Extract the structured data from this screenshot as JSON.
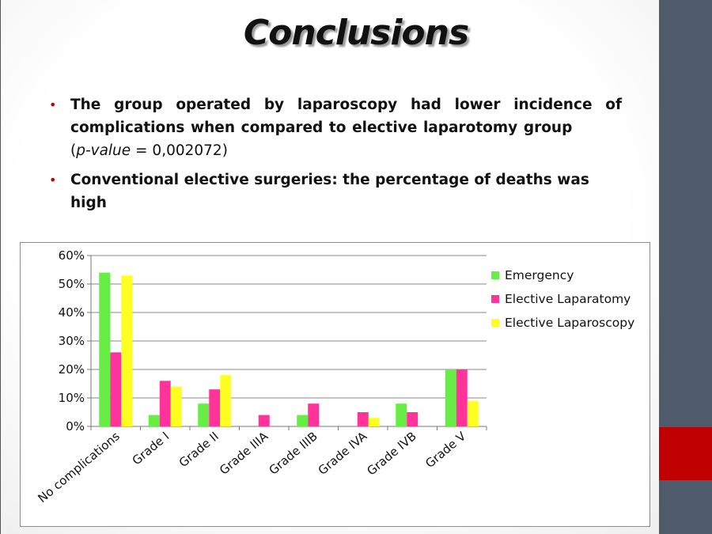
{
  "slide": {
    "title": "Conclusions",
    "bullets": [
      {
        "bold_text": " The group operated by laparoscopy had lower incidence of complications when compared to elective laparotomy group ",
        "paren_open": "(",
        "italic_text": "p-value",
        "value_text": " = 0,002072)"
      },
      {
        "bold_text": " Conventional elective surgeries: the percentage of deaths was high"
      }
    ]
  },
  "colors": {
    "accent_bar": "#4f5a6a",
    "accent_red": "#c00000"
  },
  "chart_data": {
    "type": "bar",
    "categories": [
      "No complications",
      "Grade I",
      "Grade II",
      "Grade IIIA",
      "Grade IIIB",
      "Grade IVA",
      "Grade IVB",
      "Grade V"
    ],
    "series": [
      {
        "name": "Emergency",
        "color": "#66ee44",
        "values": [
          54,
          4,
          8,
          0,
          4,
          0,
          8,
          20
        ]
      },
      {
        "name": "Elective Laparatomy",
        "color": "#ff3399",
        "values": [
          26,
          16,
          13,
          4,
          8,
          5,
          5,
          20
        ]
      },
      {
        "name": "Elective Laparoscopy",
        "color": "#ffff22",
        "values": [
          53,
          14,
          18,
          0,
          0,
          3,
          0,
          9
        ]
      }
    ],
    "yticks": [
      "0%",
      "10%",
      "20%",
      "30%",
      "40%",
      "50%",
      "60%"
    ],
    "ylim": [
      0,
      60
    ],
    "grid": true,
    "legend": "right"
  }
}
